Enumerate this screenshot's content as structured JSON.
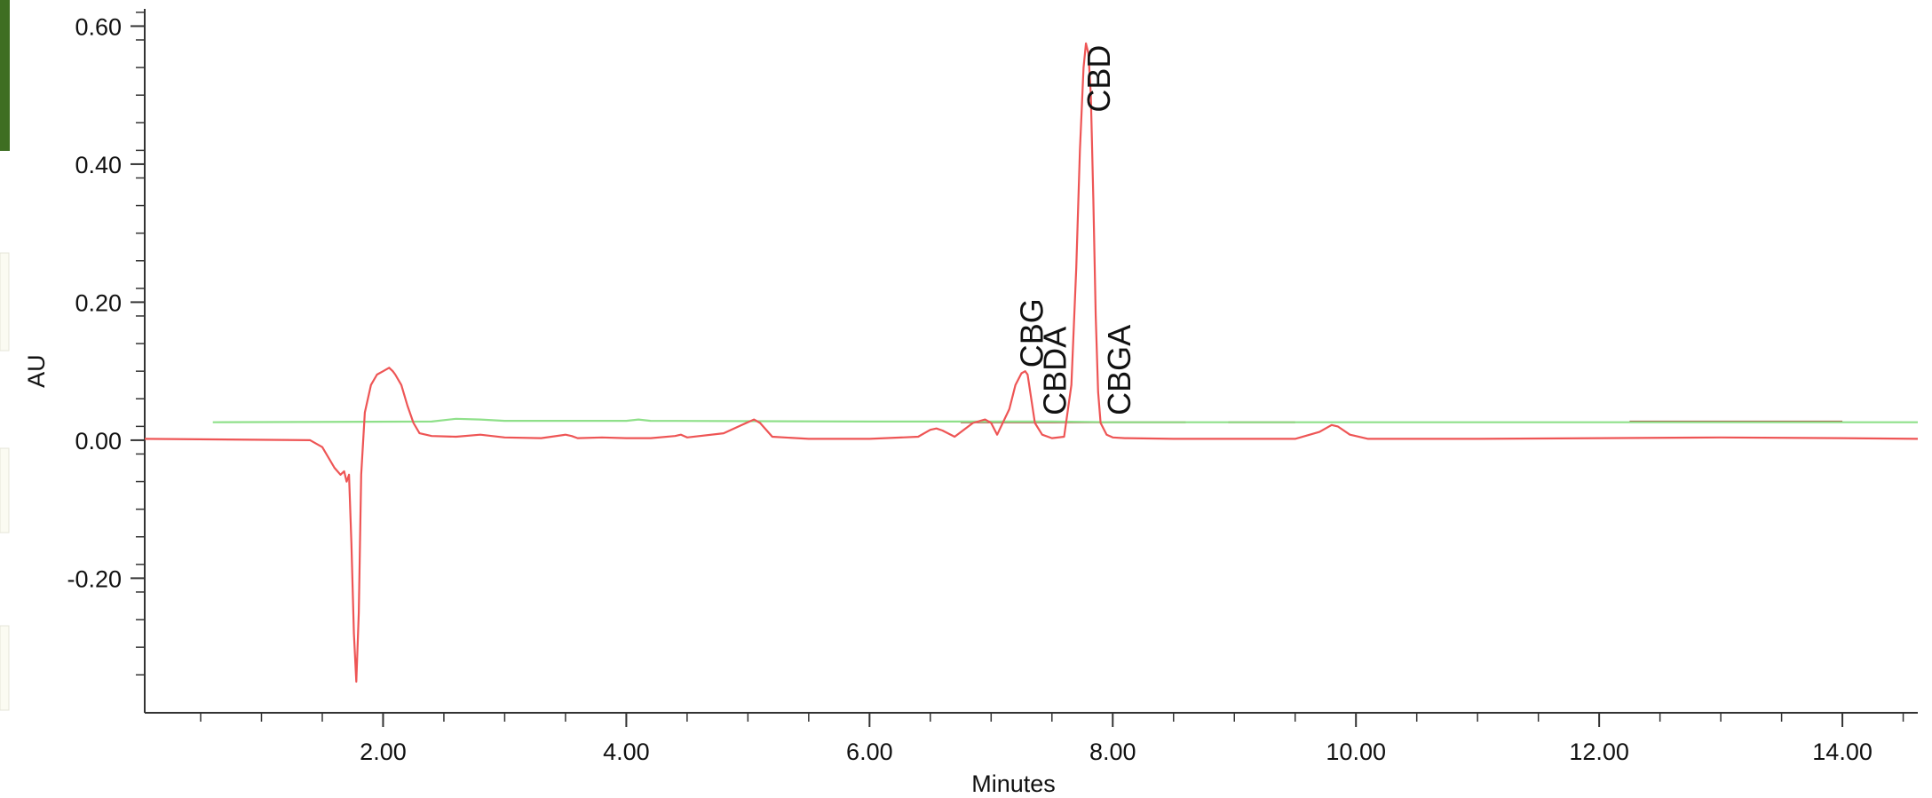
{
  "chart_data": {
    "type": "line",
    "xlabel": "Minutes",
    "ylabel": "AU",
    "xlim": [
      0.04,
      14.62
    ],
    "ylim": [
      -0.395,
      0.625
    ],
    "x_ticks": [
      {
        "value": 2.0,
        "label": "2.00"
      },
      {
        "value": 4.0,
        "label": "4.00"
      },
      {
        "value": 6.0,
        "label": "6.00"
      },
      {
        "value": 8.0,
        "label": "8.00"
      },
      {
        "value": 10.0,
        "label": "10.00"
      },
      {
        "value": 12.0,
        "label": "12.00"
      },
      {
        "value": 14.0,
        "label": "14.00"
      }
    ],
    "y_ticks": [
      {
        "value": 0.6,
        "label": "0.60"
      },
      {
        "value": 0.4,
        "label": "0.40"
      },
      {
        "value": 0.2,
        "label": "0.20"
      },
      {
        "value": 0.0,
        "label": "0.00"
      },
      {
        "value": -0.2,
        "label": "-0.20"
      }
    ],
    "grid": false,
    "series": [
      {
        "color": "#ee5555",
        "x": [
          0.04,
          1.4,
          1.5,
          1.6,
          1.65,
          1.68,
          1.7,
          1.72,
          1.74,
          1.76,
          1.78,
          1.8,
          1.82,
          1.85,
          1.9,
          1.95,
          2.0,
          2.05,
          2.08,
          2.1,
          2.15,
          2.2,
          2.25,
          2.3,
          2.4,
          2.6,
          2.8,
          3.0,
          3.3,
          3.5,
          3.55,
          3.6,
          3.8,
          4.0,
          4.2,
          4.4,
          4.45,
          4.5,
          4.8,
          4.95,
          5.05,
          5.1,
          5.2,
          5.5,
          6.0,
          6.4,
          6.5,
          6.55,
          6.6,
          6.7,
          6.85,
          6.95,
          7.0,
          7.05,
          7.15,
          7.2,
          7.25,
          7.28,
          7.3,
          7.33,
          7.36,
          7.42,
          7.5,
          7.6,
          7.66,
          7.7,
          7.73,
          7.76,
          7.78,
          7.8,
          7.82,
          7.84,
          7.86,
          7.88,
          7.9,
          7.95,
          8.0,
          8.1,
          8.5,
          9.5,
          9.7,
          9.8,
          9.85,
          9.95,
          10.1,
          11.0,
          12.0,
          13.0,
          14.0,
          14.62
        ],
        "y": [
          0.002,
          0.0,
          -0.01,
          -0.04,
          -0.05,
          -0.045,
          -0.06,
          -0.05,
          -0.15,
          -0.28,
          -0.35,
          -0.25,
          -0.05,
          0.04,
          0.08,
          0.095,
          0.1,
          0.105,
          0.1,
          0.095,
          0.08,
          0.05,
          0.025,
          0.01,
          0.006,
          0.005,
          0.008,
          0.004,
          0.003,
          0.008,
          0.006,
          0.003,
          0.004,
          0.003,
          0.003,
          0.006,
          0.008,
          0.004,
          0.01,
          0.022,
          0.03,
          0.025,
          0.005,
          0.002,
          0.002,
          0.005,
          0.015,
          0.017,
          0.014,
          0.005,
          0.025,
          0.03,
          0.025,
          0.008,
          0.045,
          0.08,
          0.097,
          0.1,
          0.095,
          0.06,
          0.025,
          0.008,
          0.003,
          0.005,
          0.08,
          0.25,
          0.42,
          0.54,
          0.575,
          0.56,
          0.5,
          0.35,
          0.18,
          0.07,
          0.025,
          0.008,
          0.004,
          0.003,
          0.002,
          0.002,
          0.012,
          0.022,
          0.02,
          0.008,
          0.002,
          0.002,
          0.003,
          0.004,
          0.003,
          0.002
        ]
      },
      {
        "color": "#8fe08a",
        "x": [
          0.6,
          2.4,
          2.6,
          2.8,
          3.0,
          4.0,
          4.1,
          4.2,
          6.0,
          7.5,
          8.0,
          9.0,
          10.0,
          12.0,
          14.0,
          14.62
        ],
        "y": [
          0.026,
          0.027,
          0.031,
          0.03,
          0.028,
          0.028,
          0.03,
          0.028,
          0.027,
          0.027,
          0.026,
          0.026,
          0.026,
          0.026,
          0.026,
          0.026
        ]
      }
    ],
    "baselines": [
      {
        "color": "#a84a3a",
        "x0": 6.75,
        "x1": 8.6,
        "y": 0.026
      },
      {
        "color": "#a84a3a",
        "x0": 8.95,
        "x1": 9.5,
        "y": 0.026
      },
      {
        "color": "#a84a3a",
        "x0": 12.25,
        "x1": 14.0,
        "y": 0.027
      }
    ],
    "annotations": [
      {
        "text": "CBG",
        "x": 7.33,
        "y": 0.105
      },
      {
        "text": "CBDA",
        "x": 7.52,
        "y": 0.036
      },
      {
        "text": "CBD",
        "x": 7.88,
        "y": 0.475
      },
      {
        "text": "CBGA",
        "x": 8.05,
        "y": 0.036
      }
    ]
  },
  "left_strip": {
    "accent_color": "#3e6e22",
    "panel_color": "#fbfbf2"
  }
}
